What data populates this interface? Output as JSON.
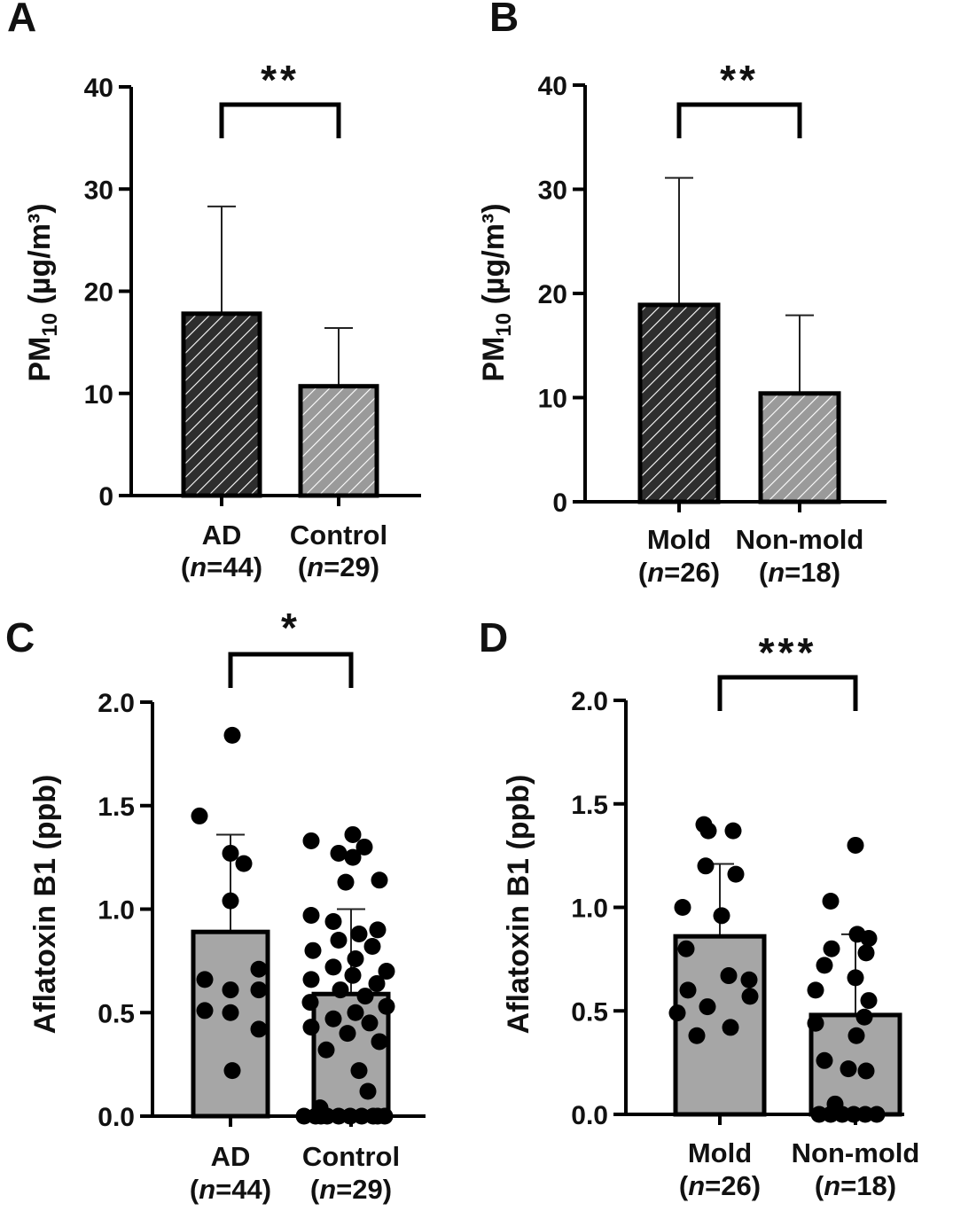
{
  "chart_data": [
    {
      "panel": "A",
      "type": "bar",
      "ylabel": "PM",
      "ylabel_sub": "10",
      "ylabel_unit": " (µg/m³)",
      "ylim": [
        0,
        40
      ],
      "yticks": [
        "0",
        "10",
        "20",
        "30",
        "40"
      ],
      "categories": [
        "AD",
        "Control"
      ],
      "category_n": [
        "44",
        "29"
      ],
      "values": [
        17.8,
        10.7
      ],
      "error": [
        10.5,
        5.7
      ],
      "significance": "**",
      "colors": [
        "#3a3a3a",
        "#9a9a9a"
      ]
    },
    {
      "panel": "B",
      "type": "bar",
      "ylabel": "PM",
      "ylabel_sub": "10",
      "ylabel_unit": " (µg/m³)",
      "ylim": [
        0,
        40
      ],
      "yticks": [
        "0",
        "10",
        "20",
        "30",
        "40"
      ],
      "categories": [
        "Mold",
        "Non-mold"
      ],
      "category_n": [
        "26",
        "18"
      ],
      "values": [
        18.9,
        10.4
      ],
      "error": [
        12.2,
        7.5
      ],
      "significance": "**",
      "colors": [
        "#3a3a3a",
        "#9a9a9a"
      ]
    },
    {
      "panel": "C",
      "type": "bar",
      "ylabel": "Aflatoxin B1 (ppb)",
      "ylim": [
        0,
        2.0
      ],
      "yticks": [
        "0.0",
        "0.5",
        "1.0",
        "1.5",
        "2.0"
      ],
      "categories": [
        "AD",
        "Control"
      ],
      "category_n": [
        "44",
        "29"
      ],
      "values": [
        0.89,
        0.59
      ],
      "error": [
        0.47,
        0.41
      ],
      "significance": "*",
      "bar_color": "#a6a6a6",
      "points": [
        [
          1.84,
          1.45,
          1.27,
          1.22,
          1.04,
          0.71,
          0.66,
          0.61,
          0.61,
          0.51,
          0.5,
          0.42,
          0.22
        ],
        [
          1.36,
          1.33,
          1.3,
          1.27,
          1.25,
          1.14,
          1.13,
          0.97,
          0.94,
          0.9,
          0.88,
          0.85,
          0.82,
          0.8,
          0.76,
          0.72,
          0.7,
          0.68,
          0.66,
          0.64,
          0.61,
          0.58,
          0.55,
          0.53,
          0.5,
          0.47,
          0.45,
          0.43,
          0.4,
          0.36,
          0.32,
          0.22,
          0.12,
          0.04,
          0,
          0,
          0,
          0,
          0,
          0,
          0,
          0,
          0,
          0
        ]
      ]
    },
    {
      "panel": "D",
      "type": "bar",
      "ylabel": "Aflatoxin B1 (ppb)",
      "ylim": [
        0,
        2.0
      ],
      "yticks": [
        "0.0",
        "0.5",
        "1.0",
        "1.5",
        "2.0"
      ],
      "categories": [
        "Mold",
        "Non-mold"
      ],
      "category_n": [
        "26",
        "18"
      ],
      "values": [
        0.86,
        0.48
      ],
      "error": [
        0.35,
        0.39
      ],
      "significance": "***",
      "bar_color": "#a6a6a6",
      "points": [
        [
          1.4,
          1.37,
          1.37,
          1.2,
          1.16,
          1.0,
          0.96,
          0.8,
          0.67,
          0.65,
          0.6,
          0.57,
          0.52,
          0.49,
          0.42,
          0.38
        ],
        [
          1.3,
          1.03,
          0.87,
          0.85,
          0.8,
          0.78,
          0.72,
          0.66,
          0.6,
          0.55,
          0.47,
          0.44,
          0.38,
          0.26,
          0.22,
          0.21,
          0.05,
          0,
          0,
          0,
          0,
          0,
          0
        ]
      ]
    }
  ]
}
